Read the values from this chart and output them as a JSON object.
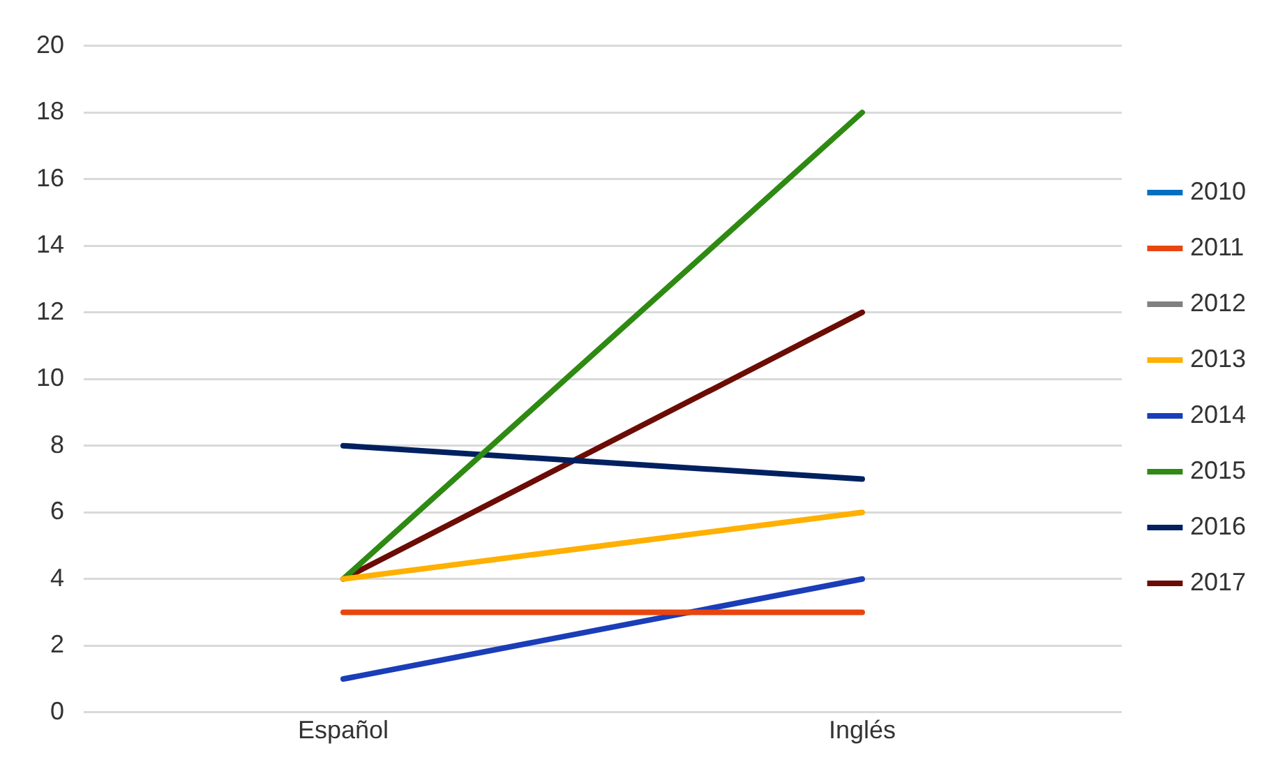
{
  "chart_data": {
    "type": "line",
    "categories": [
      "Español",
      "Inglés"
    ],
    "series": [
      {
        "name": "2010",
        "color": "#0070c0",
        "values": [
          null,
          null
        ]
      },
      {
        "name": "2011",
        "color": "#e8450f",
        "values": [
          3,
          3
        ]
      },
      {
        "name": "2012",
        "color": "#808080",
        "values": [
          null,
          null
        ]
      },
      {
        "name": "2013",
        "color": "#ffb000",
        "values": [
          4,
          6
        ]
      },
      {
        "name": "2014",
        "color": "#1a3db8",
        "values": [
          1,
          4
        ]
      },
      {
        "name": "2015",
        "color": "#2e8a12",
        "values": [
          4,
          18
        ]
      },
      {
        "name": "2016",
        "color": "#002060",
        "values": [
          8,
          7
        ]
      },
      {
        "name": "2017",
        "color": "#6b0c05",
        "values": [
          4,
          12
        ]
      }
    ],
    "ylim": [
      0,
      20
    ],
    "yticks": [
      0,
      2,
      4,
      6,
      8,
      10,
      12,
      14,
      16,
      18,
      20
    ],
    "grid": "y",
    "legend": "right",
    "marker": "none",
    "line_style": "solid"
  }
}
